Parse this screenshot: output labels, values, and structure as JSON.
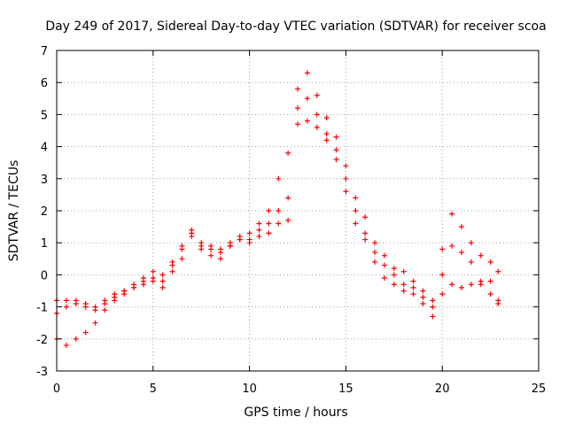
{
  "chart_data": {
    "type": "scatter",
    "title": "Day 249 of 2017, Sidereal Day-to-day VTEC variation (SDTVAR) for receiver scoa",
    "xlabel": "GPS time / hours",
    "ylabel": "SDTVAR / TECUs",
    "xlim": [
      0,
      25
    ],
    "ylim": [
      -3,
      7
    ],
    "x_ticks": [
      0,
      5,
      10,
      15,
      20,
      25
    ],
    "x_tick_labels": [
      "0",
      "5",
      "10",
      "15",
      "20",
      "25"
    ],
    "y_ticks": [
      -3,
      -2,
      -1,
      0,
      1,
      2,
      3,
      4,
      5,
      6,
      7
    ],
    "y_tick_labels": [
      "-3",
      "-2",
      "-1",
      "0",
      "1",
      "2",
      "3",
      "4",
      "5",
      "6",
      "7"
    ],
    "grid": true,
    "marker": "+",
    "series": [
      {
        "name": "track-1",
        "color": "#ff0000",
        "x": [
          0.0,
          0.5,
          1.0,
          1.5,
          2.0,
          2.5,
          3.0,
          3.5,
          4.0,
          4.5,
          5.0,
          5.5,
          6.0,
          6.5,
          7.0,
          7.5,
          8.0,
          8.5,
          9.0,
          9.5,
          10.0,
          10.5,
          11.0,
          11.5,
          12.0,
          12.5,
          13.0,
          13.5,
          14.0,
          14.5,
          15.0,
          15.5,
          16.0,
          16.5,
          17.0,
          17.5,
          18.0,
          18.5,
          19.0,
          19.5,
          20.0,
          20.5,
          21.0,
          21.5,
          22.0,
          22.5,
          22.9
        ],
        "y": [
          -2.0,
          -2.2,
          -2.0,
          -1.8,
          -1.5,
          -1.1,
          -0.8,
          -0.6,
          -0.4,
          -0.3,
          -0.2,
          -0.4,
          0.1,
          0.5,
          1.2,
          0.8,
          0.6,
          0.5,
          0.9,
          1.1,
          1.0,
          1.2,
          1.3,
          1.6,
          1.7,
          4.7,
          4.8,
          4.6,
          4.2,
          3.6,
          2.6,
          1.6,
          1.1,
          0.4,
          -0.1,
          -0.3,
          -0.5,
          -0.6,
          -0.9,
          -1.3,
          -0.6,
          -0.3,
          -0.4,
          -0.3,
          -0.2,
          -0.2,
          -0.8
        ]
      },
      {
        "name": "track-2",
        "color": "#ff0000",
        "x": [
          0.0,
          0.5,
          1.0,
          1.5,
          2.0,
          2.5,
          3.0,
          3.5,
          4.0,
          4.5,
          5.0,
          5.5,
          6.0,
          6.5,
          7.0,
          7.5,
          8.0,
          8.5,
          9.0,
          9.5,
          10.0,
          10.5,
          11.0,
          11.5,
          12.0,
          12.5,
          13.0,
          13.5,
          14.0,
          14.5,
          15.0,
          15.5,
          16.0,
          16.5,
          17.0,
          17.5,
          18.0,
          18.5,
          19.0,
          19.5,
          20.0,
          20.5,
          21.0,
          21.5,
          22.0,
          22.5,
          22.9
        ],
        "y": [
          -1.2,
          -1.0,
          -0.8,
          -0.9,
          -1.0,
          -0.9,
          -0.7,
          -0.5,
          -0.3,
          -0.1,
          0.1,
          0.0,
          0.3,
          0.9,
          1.4,
          1.0,
          0.9,
          0.8,
          1.0,
          1.2,
          1.3,
          1.6,
          2.0,
          3.0,
          3.8,
          5.8,
          6.3,
          5.6,
          4.9,
          4.3,
          3.4,
          2.4,
          1.8,
          1.0,
          0.6,
          0.2,
          0.1,
          -0.2,
          -0.5,
          -0.8,
          0.8,
          1.9,
          1.5,
          1.0,
          0.6,
          0.4,
          0.1
        ]
      },
      {
        "name": "track-3",
        "color": "#ff0000",
        "x": [
          0.0,
          0.5,
          1.0,
          1.5,
          2.0,
          2.5,
          3.0,
          3.5,
          4.0,
          4.5,
          5.0,
          5.5,
          6.0,
          6.5,
          7.0,
          7.5,
          8.0,
          8.5,
          9.0,
          9.5,
          10.0,
          10.5,
          11.0,
          11.5,
          12.0,
          12.5,
          13.0,
          13.5,
          14.0,
          14.5,
          15.0,
          15.5,
          16.0,
          16.5,
          17.0,
          17.5,
          18.0,
          18.5,
          19.0,
          19.5,
          20.0,
          20.5,
          21.0,
          21.5,
          22.0,
          22.5,
          22.9
        ],
        "y": [
          -0.8,
          -0.8,
          -0.9,
          -1.0,
          -1.1,
          -0.8,
          -0.6,
          -0.5,
          -0.4,
          -0.2,
          -0.1,
          -0.2,
          0.4,
          0.8,
          1.3,
          0.9,
          0.8,
          0.7,
          0.9,
          1.1,
          1.1,
          1.4,
          1.6,
          2.0,
          2.4,
          5.2,
          5.5,
          5.0,
          4.4,
          3.9,
          3.0,
          2.0,
          1.3,
          0.7,
          0.3,
          0.0,
          -0.3,
          -0.4,
          -0.7,
          -1.0,
          0.0,
          0.9,
          0.7,
          0.4,
          -0.3,
          -0.6,
          -0.9
        ]
      }
    ]
  }
}
